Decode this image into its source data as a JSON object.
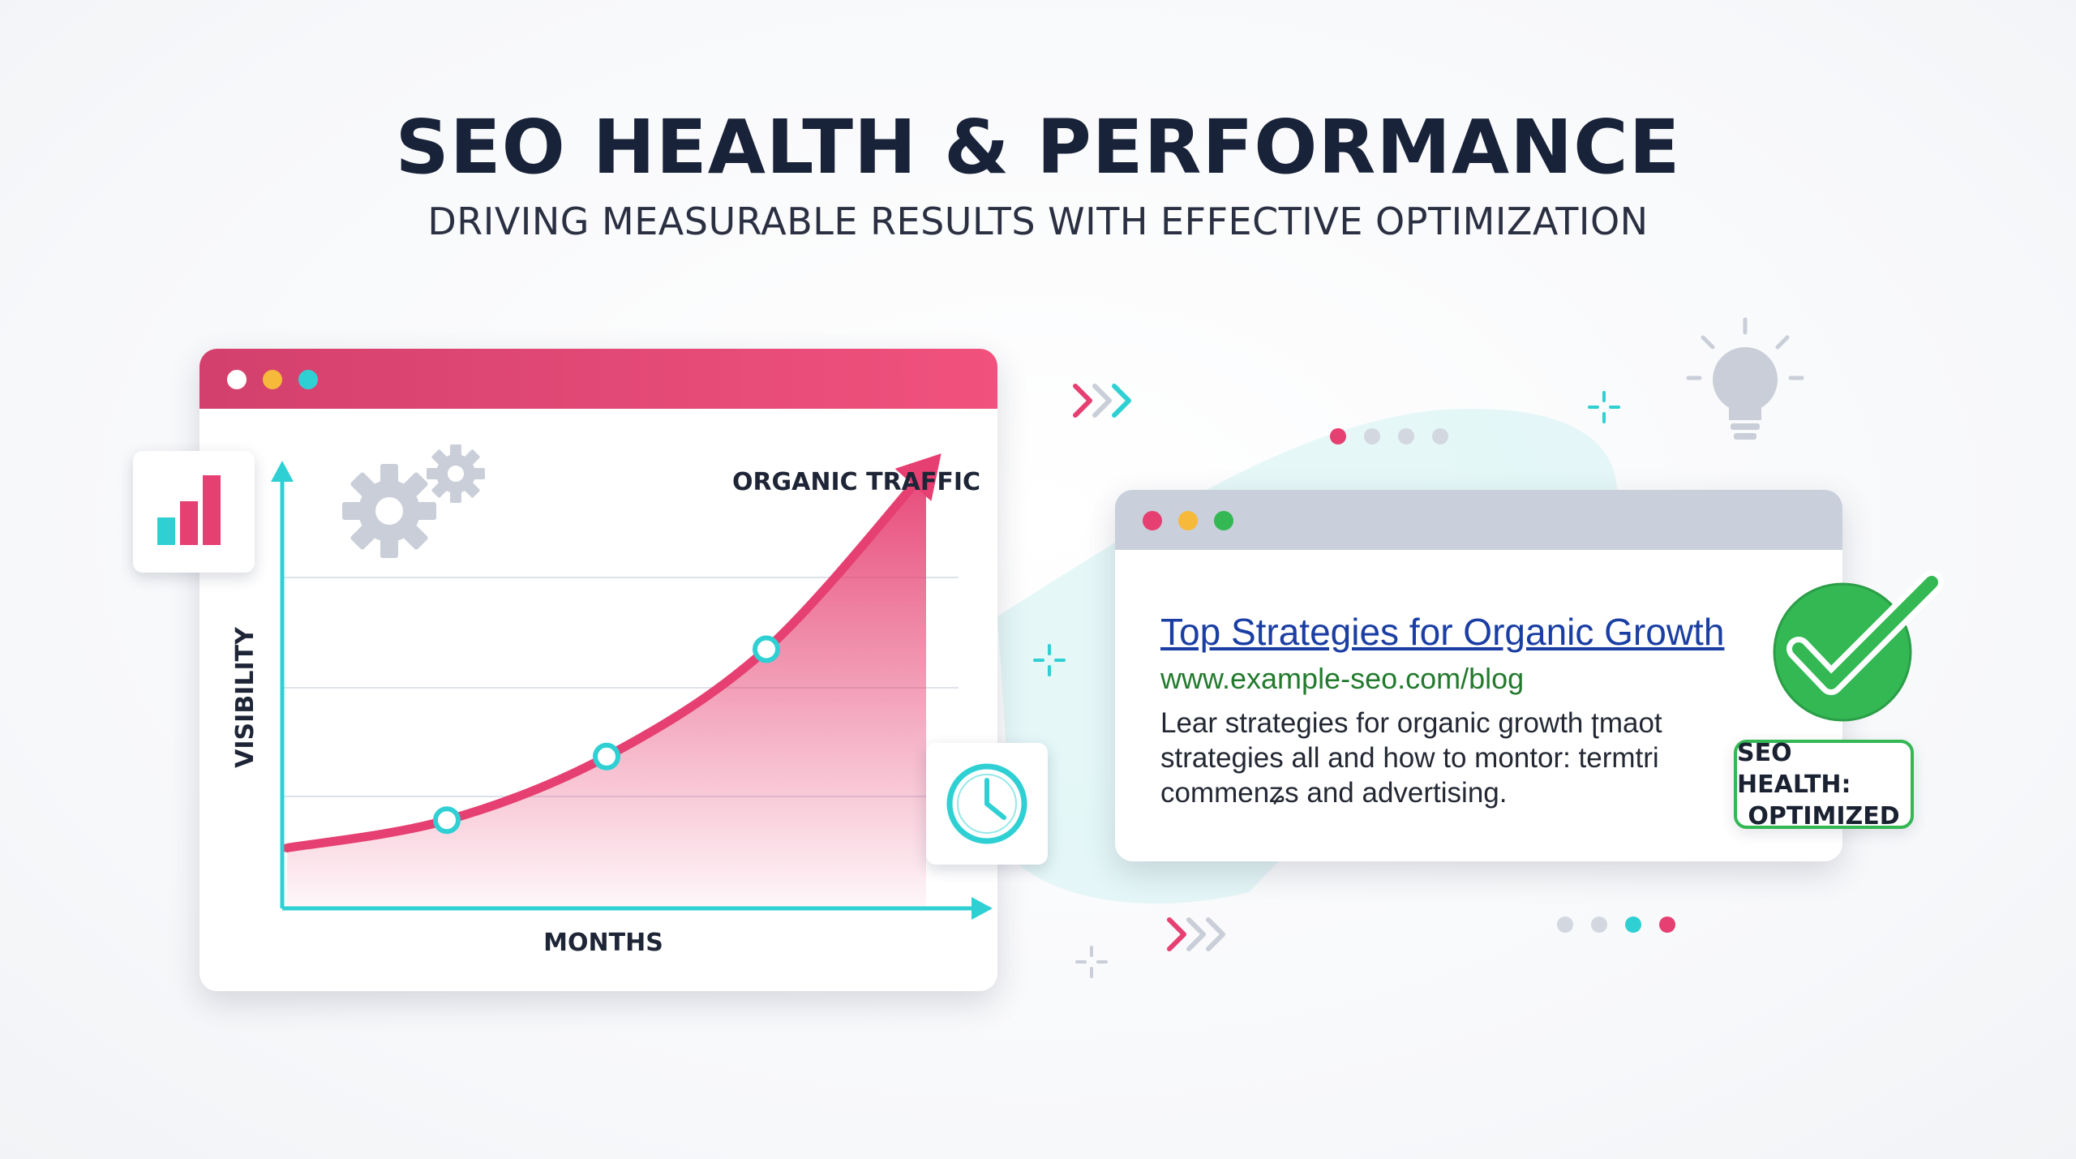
{
  "header": {
    "title": "SEO HEALTH & PERFORMANCE",
    "subtitle": "DRIVING MEASURABLE RESULTS WITH EFFECTIVE OPTIMIZATION"
  },
  "chart_window": {
    "series_label": "ORGANIC TRAFFIC",
    "x_label": "MONTHS",
    "y_label": "VISIBILITY"
  },
  "chart_data": {
    "type": "area",
    "title": "",
    "series": [
      {
        "name": "ORGANIC TRAFFIC",
        "values": [
          0.05,
          0.12,
          0.28,
          0.55,
          1.0
        ]
      }
    ],
    "x": [
      0,
      1,
      2,
      3,
      4
    ],
    "markers": [
      1,
      2,
      3
    ],
    "xlabel": "MONTHS",
    "ylabel": "VISIBILITY",
    "ylim": [
      0,
      1.0
    ],
    "grid": true,
    "colors": {
      "line": "#e63f72",
      "axis": "#2fd0d3"
    }
  },
  "search_result": {
    "title": "Top Strategies for Organic Growth",
    "url": "www.example-seo.com/blog",
    "description_lines": [
      "Lear strategies for organic growth ʈmaot",
      "strategies all and how to montor: termtri",
      "commenʑs and advertising."
    ]
  },
  "badge": {
    "line1": "SEO HEALTH:",
    "line2": "OPTIMIZED"
  },
  "colors": {
    "accent_pink": "#e63f72",
    "accent_teal": "#2fd0d3",
    "success_green": "#33b854",
    "title_navy": "#182238"
  },
  "icons": [
    "bar-chart-icon",
    "gears-icon",
    "clock-icon",
    "checkmark-icon",
    "lightbulb-icon",
    "sparkle-icon",
    "chevrons-icon"
  ]
}
